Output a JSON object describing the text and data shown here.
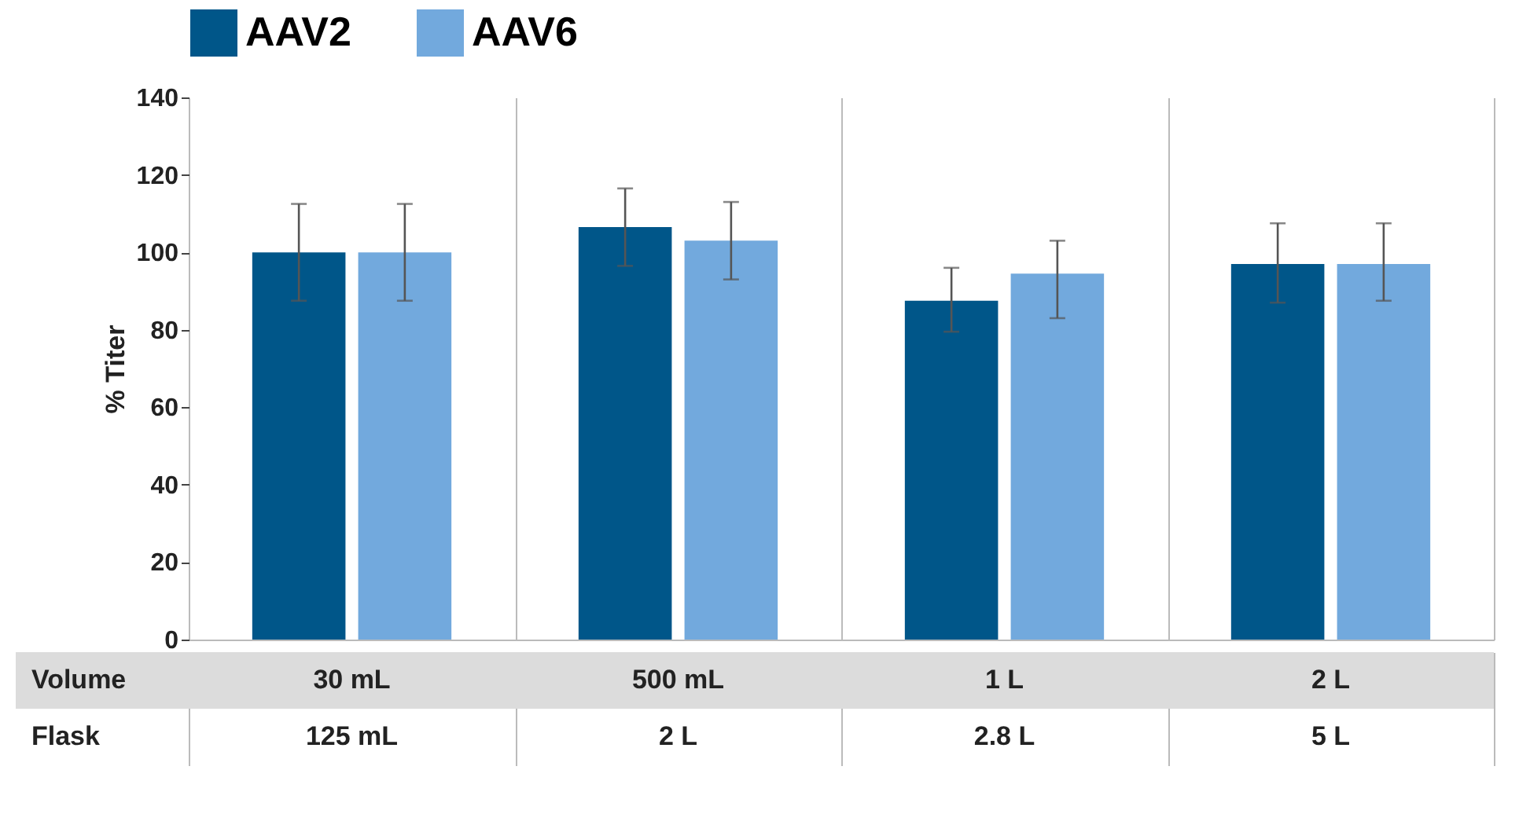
{
  "chart_data": {
    "type": "bar",
    "ylabel": "% Titer",
    "xlabel": "Volume",
    "categories": [
      "30 mL",
      "500 mL",
      "1 L",
      "2 L"
    ],
    "series": [
      {
        "name": "AAV2",
        "color": "#005689",
        "values": [
          100,
          106.5,
          87.5,
          97
        ],
        "errors": [
          [
            87.5,
            112.5
          ],
          [
            96.5,
            116.5
          ],
          [
            79.5,
            96
          ],
          [
            87,
            107.5
          ]
        ]
      },
      {
        "name": "AAV6",
        "color": "#72a9dd",
        "values": [
          100,
          103,
          94.5,
          97
        ],
        "errors": [
          [
            87.5,
            112.5
          ],
          [
            93,
            113
          ],
          [
            83,
            103
          ],
          [
            87.5,
            107.5
          ]
        ]
      }
    ],
    "annotations": [
      "Flask",
      "125 mL",
      "2 L",
      "2.8 L",
      "5 L"
    ],
    "ylim": [
      0,
      140
    ],
    "yticks": [
      0,
      20,
      40,
      60,
      80,
      100,
      120,
      140
    ],
    "grid": "x",
    "legend": "top"
  }
}
